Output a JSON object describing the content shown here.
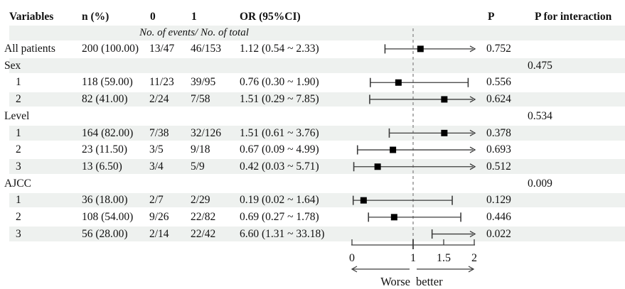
{
  "table": {
    "columns": [
      "Variables",
      "n (%)",
      "0",
      "1",
      "OR (95%CI)",
      "P",
      "P for interaction"
    ],
    "events_note": "No. of events/ No. of total",
    "rows": [
      {
        "variable": "All patients",
        "indent": false,
        "shaded": false,
        "n_pct": "200 (100.00)",
        "events0": "13/47",
        "events1": "46/153",
        "or_ci": "1.12 (0.54 ~ 2.33)",
        "p": "0.752",
        "p_interaction": ""
      },
      {
        "variable": "Sex",
        "indent": false,
        "shaded": true,
        "n_pct": "",
        "events0": "",
        "events1": "",
        "or_ci": "",
        "p": "",
        "p_interaction": "0.475"
      },
      {
        "variable": "1",
        "indent": true,
        "shaded": false,
        "n_pct": "118 (59.00)",
        "events0": "11/23",
        "events1": "39/95",
        "or_ci": "0.76 (0.30 ~ 1.90)",
        "p": "0.556",
        "p_interaction": ""
      },
      {
        "variable": "2",
        "indent": true,
        "shaded": true,
        "n_pct": "82 (41.00)",
        "events0": "2/24",
        "events1": "7/58",
        "or_ci": "1.51 (0.29 ~ 7.85)",
        "p": "0.624",
        "p_interaction": ""
      },
      {
        "variable": "Level",
        "indent": false,
        "shaded": false,
        "n_pct": "",
        "events0": "",
        "events1": "",
        "or_ci": "",
        "p": "",
        "p_interaction": "0.534"
      },
      {
        "variable": "1",
        "indent": true,
        "shaded": true,
        "n_pct": "164 (82.00)",
        "events0": "7/38",
        "events1": "32/126",
        "or_ci": "1.51 (0.61 ~ 3.76)",
        "p": "0.378",
        "p_interaction": ""
      },
      {
        "variable": "2",
        "indent": true,
        "shaded": false,
        "n_pct": "23 (11.50)",
        "events0": "3/5",
        "events1": "9/18",
        "or_ci": "0.67 (0.09 ~ 4.99)",
        "p": "0.693",
        "p_interaction": ""
      },
      {
        "variable": "3",
        "indent": true,
        "shaded": true,
        "n_pct": "13 (6.50)",
        "events0": "3/4",
        "events1": "5/9",
        "or_ci": "0.42 (0.03 ~ 5.71)",
        "p": "0.512",
        "p_interaction": ""
      },
      {
        "variable": "AJCC",
        "indent": false,
        "shaded": false,
        "n_pct": "",
        "events0": "",
        "events1": "",
        "or_ci": "",
        "p": "",
        "p_interaction": "0.009"
      },
      {
        "variable": "1",
        "indent": true,
        "shaded": true,
        "n_pct": "36 (18.00)",
        "events0": "2/7",
        "events1": "2/29",
        "or_ci": "0.19 (0.02 ~ 1.64)",
        "p": "0.129",
        "p_interaction": ""
      },
      {
        "variable": "2",
        "indent": true,
        "shaded": false,
        "n_pct": "108 (54.00)",
        "events0": "9/26",
        "events1": "22/82",
        "or_ci": "0.69 (0.27 ~ 1.78)",
        "p": "0.446",
        "p_interaction": ""
      },
      {
        "variable": "3",
        "indent": true,
        "shaded": true,
        "n_pct": "56 (28.00)",
        "events0": "2/14",
        "events1": "22/42",
        "or_ci": "6.60 (1.31 ~ 33.18)",
        "p": "0.022",
        "p_interaction": ""
      }
    ]
  },
  "chart_data": {
    "type": "forest",
    "x_axis": {
      "tick_labels": [
        "0",
        "1",
        "1.5",
        "2"
      ],
      "tick_values": [
        0,
        1,
        1.5,
        2
      ],
      "xlim": [
        0,
        2
      ],
      "reference_line": 1,
      "clip_upper": 2,
      "direction_labels": {
        "left": "Worse",
        "right": "better"
      }
    },
    "points": [
      {
        "row": 0,
        "label": "All patients",
        "or": 1.12,
        "low": 0.54,
        "high": 2.33
      },
      {
        "row": 2,
        "label": "Sex 1",
        "or": 0.76,
        "low": 0.3,
        "high": 1.9
      },
      {
        "row": 3,
        "label": "Sex 2",
        "or": 1.51,
        "low": 0.29,
        "high": 7.85
      },
      {
        "row": 5,
        "label": "Level 1",
        "or": 1.51,
        "low": 0.61,
        "high": 3.76
      },
      {
        "row": 6,
        "label": "Level 2",
        "or": 0.67,
        "low": 0.09,
        "high": 4.99
      },
      {
        "row": 7,
        "label": "Level 3",
        "or": 0.42,
        "low": 0.03,
        "high": 5.71
      },
      {
        "row": 9,
        "label": "AJCC 1",
        "or": 0.19,
        "low": 0.02,
        "high": 1.64
      },
      {
        "row": 10,
        "label": "AJCC 2",
        "or": 0.69,
        "low": 0.27,
        "high": 1.78
      },
      {
        "row": 11,
        "label": "AJCC 3",
        "or": 6.6,
        "low": 1.31,
        "high": 33.18
      }
    ]
  },
  "colors": {
    "stripe": "#eef1ef",
    "ci_line": "#3c3c3c",
    "marker": "#000000",
    "reference_dash": "#9c9c9c",
    "text": "#111111"
  }
}
